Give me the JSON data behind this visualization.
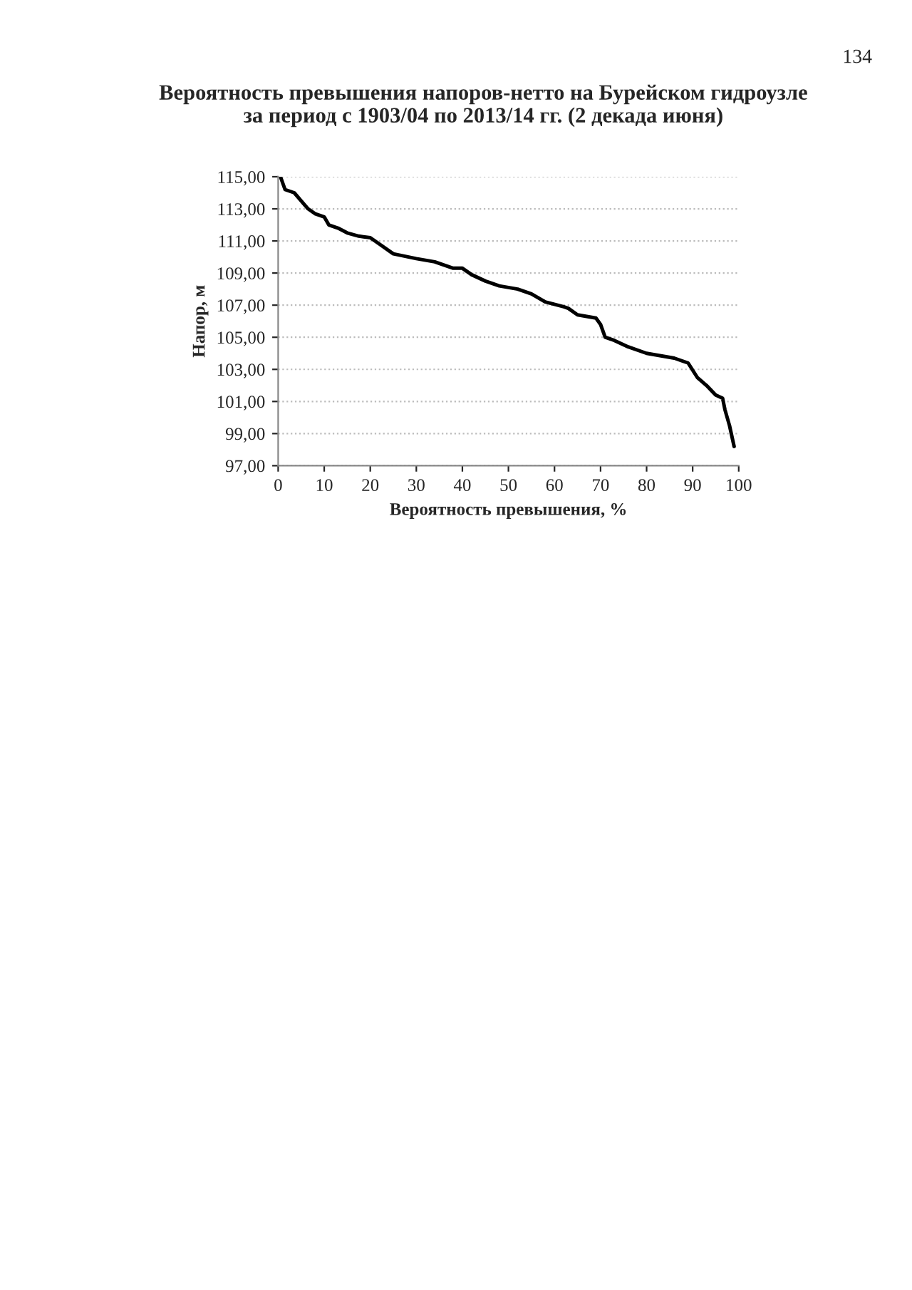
{
  "chart_data": {
    "type": "line",
    "title": "Вероятность превышения напоров-нетто на Бурейском гидроузле\nза период с 1903/04 по 2013/14 гг. (2 декада июня)",
    "xlabel": "Вероятность превышения, %",
    "ylabel": "Напор, м",
    "annotations": [
      "134"
    ],
    "x": [
      0.5,
      1.5,
      3.5,
      5,
      6.5,
      8,
      10,
      11,
      13,
      15,
      17.5,
      20,
      22,
      25,
      30,
      34,
      38,
      40,
      42,
      45,
      48,
      52,
      55,
      58,
      62,
      63,
      65,
      69,
      70,
      71,
      73,
      76,
      80,
      84,
      86,
      89,
      91,
      93,
      95,
      96.5,
      97,
      98,
      99
    ],
    "series": [
      {
        "color": "#000000",
        "values": [
          115.0,
          114.2,
          114.0,
          113.5,
          113.0,
          112.7,
          112.5,
          112.0,
          111.8,
          111.5,
          111.3,
          111.2,
          110.8,
          110.2,
          109.9,
          109.7,
          109.3,
          109.3,
          108.9,
          108.5,
          108.2,
          108.0,
          107.7,
          107.2,
          106.9,
          106.8,
          106.4,
          106.2,
          105.8,
          105.0,
          104.8,
          104.4,
          104.0,
          103.8,
          103.7,
          103.4,
          102.5,
          102.0,
          101.4,
          101.2,
          100.5,
          99.5,
          98.2
        ]
      }
    ],
    "xlim": [
      0,
      100
    ],
    "xticks": [
      0,
      10,
      20,
      30,
      40,
      50,
      60,
      70,
      80,
      90,
      100
    ],
    "ylim": [
      97,
      115
    ],
    "yticks": [
      {
        "value": 97,
        "label": "97,00"
      },
      {
        "value": 99,
        "label": "99,00"
      },
      {
        "value": 101,
        "label": "101,00"
      },
      {
        "value": 103,
        "label": "103,00"
      },
      {
        "value": 105,
        "label": "105,00"
      },
      {
        "value": 107,
        "label": "107,00"
      },
      {
        "value": 109,
        "label": "109,00"
      },
      {
        "value": 111,
        "label": "111,00"
      },
      {
        "value": 113,
        "label": "113,00"
      },
      {
        "value": 115,
        "label": "115,00"
      }
    ],
    "grid": "y",
    "legend": false,
    "marker": "none",
    "line_style": "solid"
  }
}
